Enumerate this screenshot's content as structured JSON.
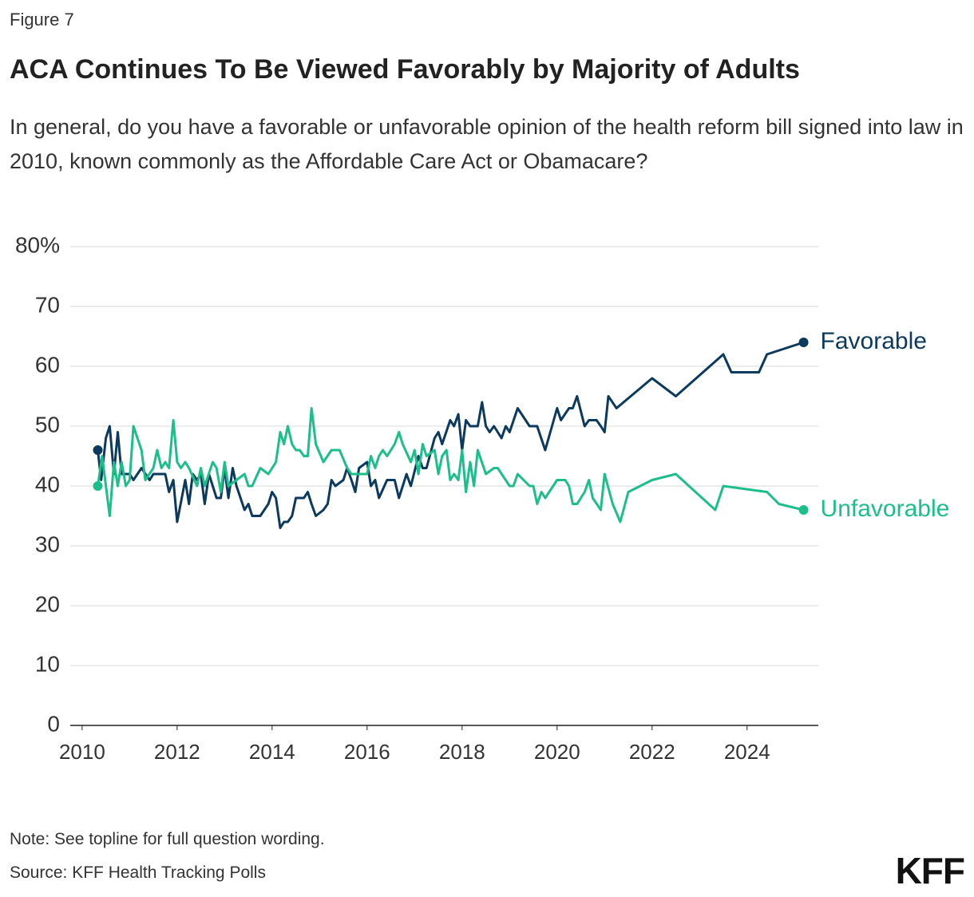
{
  "chart_data": {
    "type": "line",
    "figure_label": "Figure 7",
    "title": "ACA Continues To Be Viewed Favorably by Majority of Adults",
    "subtitle": "In general, do you have a favorable or unfavorable opinion of the health reform bill signed into law in 2010, known commonly as the Affordable Care Act or Obamacare?",
    "note": "Note: See topline for full question wording.",
    "source": "Source: KFF Health Tracking Polls",
    "logo": "KFF",
    "xlim": [
      2009.75,
      2025.5
    ],
    "xticks": [
      2010,
      2012,
      2014,
      2016,
      2018,
      2020,
      2022,
      2024
    ],
    "ylim": [
      0,
      80
    ],
    "yticks": [
      0,
      10,
      20,
      30,
      40,
      50,
      60,
      70,
      {
        "value": 80,
        "label": "80%"
      }
    ],
    "grid": true,
    "series": [
      {
        "name": "Favorable",
        "color": "#0b3a5e",
        "x": [
          2010.33,
          2010.4,
          2010.5,
          2010.58,
          2010.67,
          2010.75,
          2010.83,
          2011.0,
          2011.08,
          2011.25,
          2011.42,
          2011.5,
          2011.75,
          2011.83,
          2011.92,
          2012.0,
          2012.17,
          2012.25,
          2012.33,
          2012.42,
          2012.5,
          2012.58,
          2012.67,
          2012.83,
          2012.92,
          2013.0,
          2013.08,
          2013.17,
          2013.25,
          2013.42,
          2013.5,
          2013.58,
          2013.75,
          2013.92,
          2014.0,
          2014.08,
          2014.17,
          2014.25,
          2014.33,
          2014.42,
          2014.5,
          2014.67,
          2014.75,
          2014.83,
          2014.92,
          2015.08,
          2015.17,
          2015.25,
          2015.33,
          2015.5,
          2015.58,
          2015.67,
          2015.75,
          2015.83,
          2016.0,
          2016.08,
          2016.17,
          2016.25,
          2016.42,
          2016.58,
          2016.67,
          2016.83,
          2016.92,
          2017.08,
          2017.17,
          2017.25,
          2017.42,
          2017.5,
          2017.58,
          2017.75,
          2017.83,
          2017.92,
          2018.0,
          2018.08,
          2018.17,
          2018.33,
          2018.42,
          2018.5,
          2018.58,
          2018.67,
          2018.83,
          2018.92,
          2019.0,
          2019.17,
          2019.42,
          2019.58,
          2019.75,
          2020.0,
          2020.08,
          2020.25,
          2020.33,
          2020.42,
          2020.58,
          2020.67,
          2020.83,
          2020.92,
          2021.0,
          2021.08,
          2021.25,
          2022.0,
          2022.5,
          2023.5,
          2023.67,
          2024.25,
          2024.42,
          2025.19
        ],
        "values": [
          46,
          41,
          48,
          50,
          42,
          49,
          42,
          42,
          41,
          43,
          41,
          42,
          42,
          39,
          41,
          34,
          41,
          37,
          42,
          41,
          42,
          37,
          42,
          38,
          38,
          43,
          38,
          43,
          40,
          36,
          37,
          35,
          35,
          37,
          39,
          38,
          33,
          34,
          34,
          35,
          38,
          38,
          39,
          37,
          35,
          36,
          37,
          41,
          40,
          41,
          43,
          41,
          39,
          43,
          44,
          40,
          41,
          38,
          41,
          41,
          38,
          42,
          40,
          45,
          43,
          43,
          48,
          49,
          47,
          51,
          50,
          52,
          46,
          51,
          50,
          50,
          54,
          50,
          49,
          50,
          48,
          50,
          49,
          53,
          50,
          50,
          46,
          53,
          51,
          53,
          53,
          55,
          50,
          51,
          51,
          50,
          49,
          55,
          53,
          58,
          55,
          62,
          59,
          59,
          62,
          64
        ]
      },
      {
        "name": "Unfavorable",
        "color": "#1cbf8a",
        "x": [
          2010.33,
          2010.42,
          2010.58,
          2010.67,
          2010.75,
          2010.83,
          2010.92,
          2011.0,
          2011.08,
          2011.25,
          2011.33,
          2011.5,
          2011.58,
          2011.67,
          2011.75,
          2011.83,
          2011.92,
          2012.0,
          2012.08,
          2012.17,
          2012.25,
          2012.42,
          2012.5,
          2012.58,
          2012.75,
          2012.83,
          2012.92,
          2013.0,
          2013.08,
          2013.25,
          2013.42,
          2013.5,
          2013.58,
          2013.75,
          2013.92,
          2014.08,
          2014.17,
          2014.25,
          2014.33,
          2014.42,
          2014.5,
          2014.58,
          2014.67,
          2014.75,
          2014.83,
          2014.92,
          2015.08,
          2015.25,
          2015.42,
          2015.58,
          2015.67,
          2015.83,
          2016.0,
          2016.08,
          2016.17,
          2016.25,
          2016.33,
          2016.42,
          2016.58,
          2016.67,
          2016.75,
          2016.92,
          2017.0,
          2017.08,
          2017.17,
          2017.25,
          2017.42,
          2017.5,
          2017.58,
          2017.67,
          2017.75,
          2017.83,
          2017.92,
          2018.0,
          2018.08,
          2018.17,
          2018.25,
          2018.33,
          2018.5,
          2018.67,
          2018.75,
          2019.0,
          2019.08,
          2019.17,
          2019.42,
          2019.5,
          2019.58,
          2019.67,
          2019.75,
          2020.0,
          2020.17,
          2020.25,
          2020.33,
          2020.42,
          2020.58,
          2020.67,
          2020.75,
          2020.92,
          2021.0,
          2021.17,
          2021.33,
          2021.5,
          2022.0,
          2022.5,
          2023.33,
          2023.5,
          2024.42,
          2024.67,
          2025.19
        ],
        "values": [
          40,
          45,
          35,
          44,
          40,
          44,
          40,
          41,
          50,
          46,
          41,
          43,
          46,
          43,
          44,
          43,
          51,
          44,
          43,
          44,
          43,
          40,
          43,
          40,
          44,
          43,
          39,
          44,
          40,
          41,
          42,
          40,
          40,
          43,
          42,
          44,
          49,
          47,
          50,
          47,
          46,
          46,
          45,
          45,
          53,
          47,
          44,
          46,
          46,
          43,
          42,
          42,
          42,
          45,
          43,
          45,
          46,
          45,
          47,
          49,
          47,
          44,
          46,
          42,
          47,
          45,
          46,
          42,
          45,
          46,
          41,
          42,
          41,
          46,
          39,
          44,
          40,
          46,
          42,
          43,
          43,
          40,
          40,
          42,
          40,
          40,
          37,
          39,
          38,
          41,
          41,
          40,
          37,
          37,
          39,
          41,
          38,
          36,
          42,
          37,
          34,
          39,
          41,
          42,
          36,
          40,
          39,
          37,
          36
        ]
      }
    ]
  }
}
